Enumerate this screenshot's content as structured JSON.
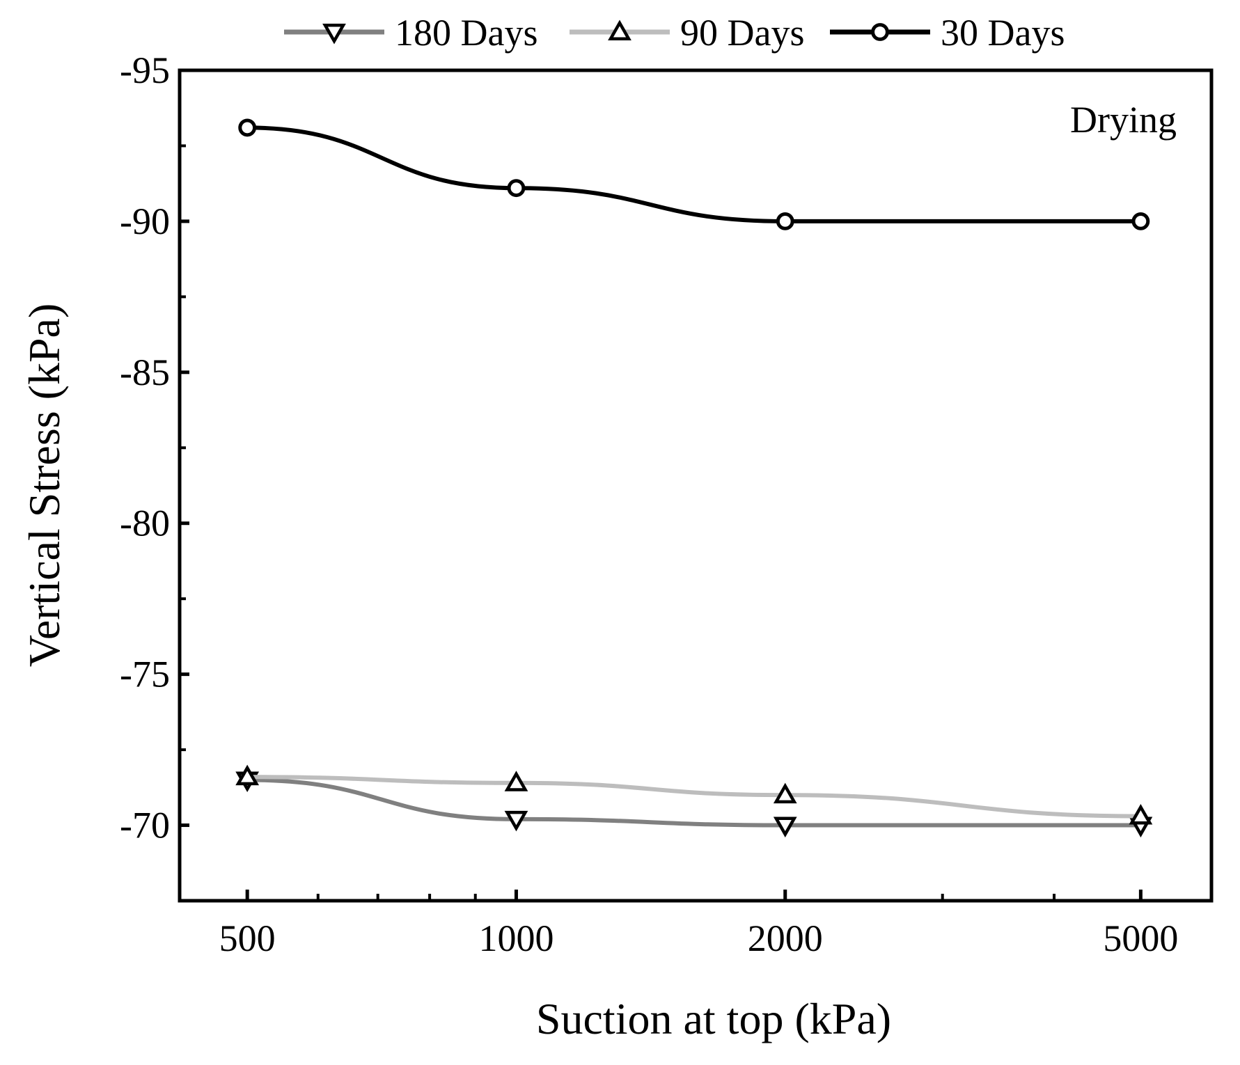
{
  "chart_data": {
    "type": "line",
    "title": "",
    "xlabel": "Suction at top (kPa)",
    "ylabel": "Vertical Stress (kPa)",
    "xscale": "log",
    "xlim": [
      420,
      6000
    ],
    "ylim": [
      -67.5,
      -95
    ],
    "y_inverted": true,
    "x_ticks": [
      500,
      1000,
      2000,
      5000
    ],
    "x_tick_labels": [
      "500",
      "1000",
      "2000",
      "5000"
    ],
    "y_ticks": [
      -70,
      -75,
      -80,
      -85,
      -90,
      -95
    ],
    "y_tick_labels": [
      "-70",
      "-75",
      "-80",
      "-85",
      "-90",
      "-95"
    ],
    "grid": false,
    "legend_position": "top",
    "annotation": "Drying",
    "series": [
      {
        "name": "180 Days",
        "marker": "triangle-down",
        "color": "#808080",
        "x": [
          500,
          1000,
          2000,
          5000
        ],
        "values": [
          -71.5,
          -70.2,
          -70.0,
          -70.0
        ]
      },
      {
        "name": "90 Days",
        "marker": "triangle-up",
        "color": "#bdbdbd",
        "x": [
          500,
          1000,
          2000,
          5000
        ],
        "values": [
          -71.6,
          -71.4,
          -71.0,
          -70.3
        ]
      },
      {
        "name": "30 Days",
        "marker": "circle",
        "color": "#000000",
        "x": [
          500,
          1000,
          2000,
          5000
        ],
        "values": [
          -93.1,
          -91.1,
          -90.0,
          -90.0
        ]
      }
    ]
  }
}
